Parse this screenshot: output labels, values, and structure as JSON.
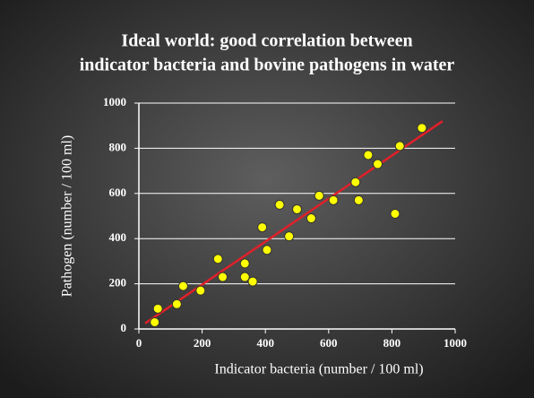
{
  "chart_data": {
    "type": "scatter",
    "title": [
      "Ideal world: good correlation between",
      "indicator bacteria and bovine pathogens in water"
    ],
    "x_label": "Indicator bacteria (number / 100 ml)",
    "y_label": "Pathogen (number / 100 ml)",
    "xlim": [
      0,
      1000
    ],
    "xticks": [
      0,
      200,
      400,
      600,
      800,
      1000
    ],
    "ylim": [
      0,
      1000
    ],
    "yticks": [
      0,
      200,
      400,
      600,
      800,
      1000
    ],
    "grid": true,
    "color": "#ffff00",
    "x": [
      50,
      60,
      120,
      140,
      195,
      250,
      265,
      335,
      335,
      360,
      390,
      405,
      445,
      475,
      500,
      545,
      570,
      615,
      685,
      695,
      725,
      755,
      810,
      825,
      895
    ],
    "values": [
      30,
      90,
      110,
      190,
      170,
      310,
      230,
      290,
      230,
      210,
      450,
      350,
      550,
      410,
      530,
      490,
      590,
      570,
      650,
      570,
      770,
      730,
      510,
      810,
      890
    ],
    "trend_line": {
      "color": "#e0202a",
      "x": [
        20,
        960
      ],
      "values": [
        25,
        920
      ]
    }
  }
}
